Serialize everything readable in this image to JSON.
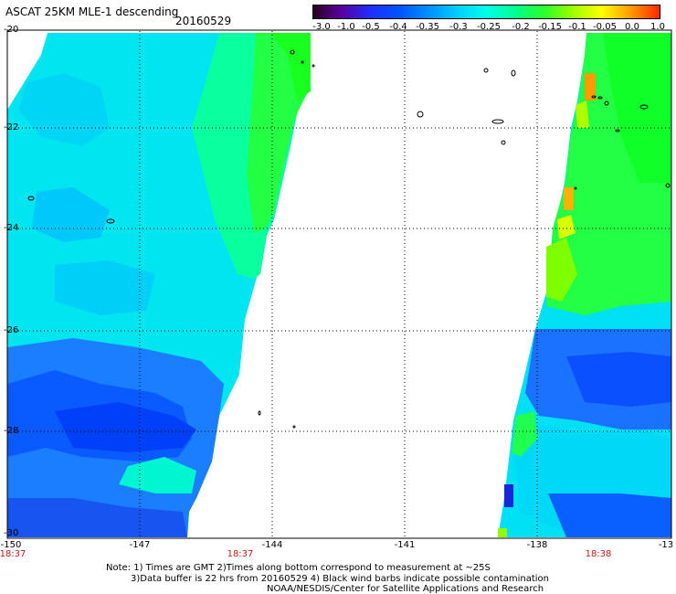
{
  "header": {
    "title": "ASCAT 25KM MLE-1 descending",
    "date": "20160529"
  },
  "colorbar": {
    "labels": [
      "-3.0",
      "-1.0",
      "-0.5",
      "-0.4",
      "-0.35",
      "-0.3",
      "-0.25",
      "-0.2",
      "-0.15",
      "-0.1",
      "-0.05",
      "0.0",
      "1.0"
    ],
    "colors": [
      "#2a001f",
      "#5a00a0",
      "#1f2fff",
      "#0055ff",
      "#0090ff",
      "#00cfff",
      "#00ffe6",
      "#00ff90",
      "#2bff2b",
      "#9dff00",
      "#ffff00",
      "#ff9900",
      "#ff2a00"
    ]
  },
  "map": {
    "lat_labels": [
      "-20",
      "-22",
      "-24",
      "-26",
      "-28",
      "-30"
    ],
    "lon_labels": [
      "-150",
      "-147",
      "-144",
      "-141",
      "-138",
      "-13"
    ],
    "time_labels": [
      "18:37",
      "18:37",
      "18:38"
    ]
  },
  "footer": {
    "line1": "Note: 1) Times are GMT 2)Times along bottom correspond to measurement at ~25S",
    "line2": "3)Data buffer is 22 hrs from 20160529 4) Black wind barbs indicate possible contamination",
    "line3": "NOAA/NESDIS/Center for Satellite Applications and Research"
  }
}
